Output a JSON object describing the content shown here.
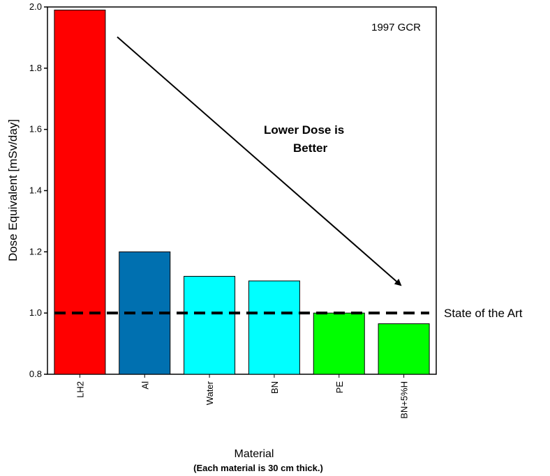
{
  "chart_data": {
    "type": "bar",
    "categories": [
      "LH2",
      "Al",
      "Water",
      "BN",
      "PE",
      "BN+5%H"
    ],
    "values": [
      1.99,
      1.2,
      1.12,
      1.105,
      1.0,
      0.965
    ],
    "bar_colors": [
      "#ff0000",
      "#0070b0",
      "#00ffff",
      "#00ffff",
      "#00ff00",
      "#00ff00"
    ],
    "ylabel": "Dose Equivalent [mSv/day]",
    "xlabel": "Material",
    "x_note": "(Each material is 30 cm thick.)",
    "ylim": [
      0.8,
      2.0
    ],
    "yticks": [
      "0.8",
      "1.0",
      "1.2",
      "1.4",
      "1.6",
      "1.8",
      "2.0"
    ],
    "inset_label": "1997 GCR",
    "annotation": {
      "line1": "Lower Dose is",
      "line2": "Better"
    },
    "reference_line": {
      "value": 1.0,
      "label": "State of the Art",
      "style": "dashed",
      "color": "#000000"
    },
    "grid": false,
    "legend": "none"
  }
}
